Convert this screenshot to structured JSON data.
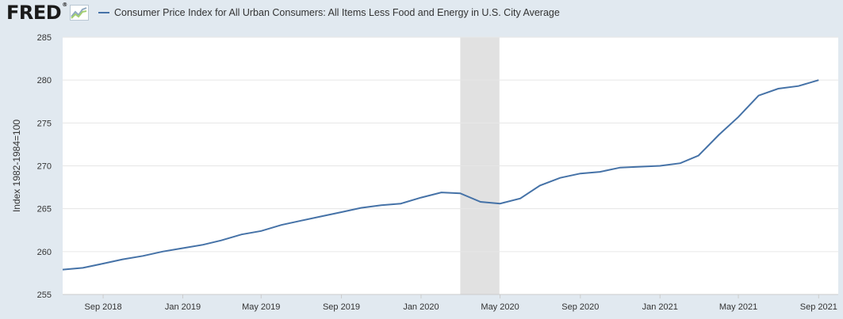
{
  "header": {
    "logo_text": "FRED",
    "logo_mark": "®",
    "logo_icon": "line-graph-icon"
  },
  "chart_data": {
    "type": "line",
    "title": "",
    "xlabel": "",
    "ylabel": "Index 1982-1984=100",
    "ylim": [
      255,
      285
    ],
    "xlim": [
      "2018-07-01",
      "2021-10-01"
    ],
    "y_ticks": [
      255,
      260,
      265,
      270,
      275,
      280,
      285
    ],
    "x_ticks": [
      {
        "date": "2018-09-01",
        "label": "Sep 2018"
      },
      {
        "date": "2019-01-01",
        "label": "Jan 2019"
      },
      {
        "date": "2019-05-01",
        "label": "May 2019"
      },
      {
        "date": "2019-09-01",
        "label": "Sep 2019"
      },
      {
        "date": "2020-01-01",
        "label": "Jan 2020"
      },
      {
        "date": "2020-05-01",
        "label": "May 2020"
      },
      {
        "date": "2020-09-01",
        "label": "Sep 2020"
      },
      {
        "date": "2021-01-01",
        "label": "Jan 2021"
      },
      {
        "date": "2021-05-01",
        "label": "May 2021"
      },
      {
        "date": "2021-09-01",
        "label": "Sep 2021"
      }
    ],
    "grid": true,
    "legend_position": "top-left",
    "recession_shading": {
      "start": "2020-03-01",
      "end": "2020-04-30",
      "color": "#e1e1e1"
    },
    "series": [
      {
        "name": "Consumer Price Index for All Urban Consumers: All Items Less Food and Energy in U.S. City Average",
        "color": "#4572a7",
        "x": [
          "2018-07-01",
          "2018-08-01",
          "2018-09-01",
          "2018-10-01",
          "2018-11-01",
          "2018-12-01",
          "2019-01-01",
          "2019-02-01",
          "2019-03-01",
          "2019-04-01",
          "2019-05-01",
          "2019-06-01",
          "2019-07-01",
          "2019-08-01",
          "2019-09-01",
          "2019-10-01",
          "2019-11-01",
          "2019-12-01",
          "2020-01-01",
          "2020-02-01",
          "2020-03-01",
          "2020-04-01",
          "2020-05-01",
          "2020-06-01",
          "2020-07-01",
          "2020-08-01",
          "2020-09-01",
          "2020-10-01",
          "2020-11-01",
          "2020-12-01",
          "2021-01-01",
          "2021-02-01",
          "2021-03-01",
          "2021-04-01",
          "2021-05-01",
          "2021-06-01",
          "2021-07-01",
          "2021-08-01",
          "2021-09-01"
        ],
        "values": [
          257.9,
          258.1,
          258.6,
          259.1,
          259.5,
          260.0,
          260.4,
          260.8,
          261.3,
          262.0,
          262.4,
          263.1,
          263.6,
          264.1,
          264.6,
          265.1,
          265.4,
          265.6,
          266.3,
          266.9,
          266.8,
          265.8,
          265.6,
          266.2,
          267.7,
          268.6,
          269.1,
          269.3,
          269.8,
          269.9,
          270.0,
          270.3,
          271.2,
          273.6,
          275.7,
          278.2,
          279.0,
          279.3,
          280.0
        ]
      }
    ]
  }
}
